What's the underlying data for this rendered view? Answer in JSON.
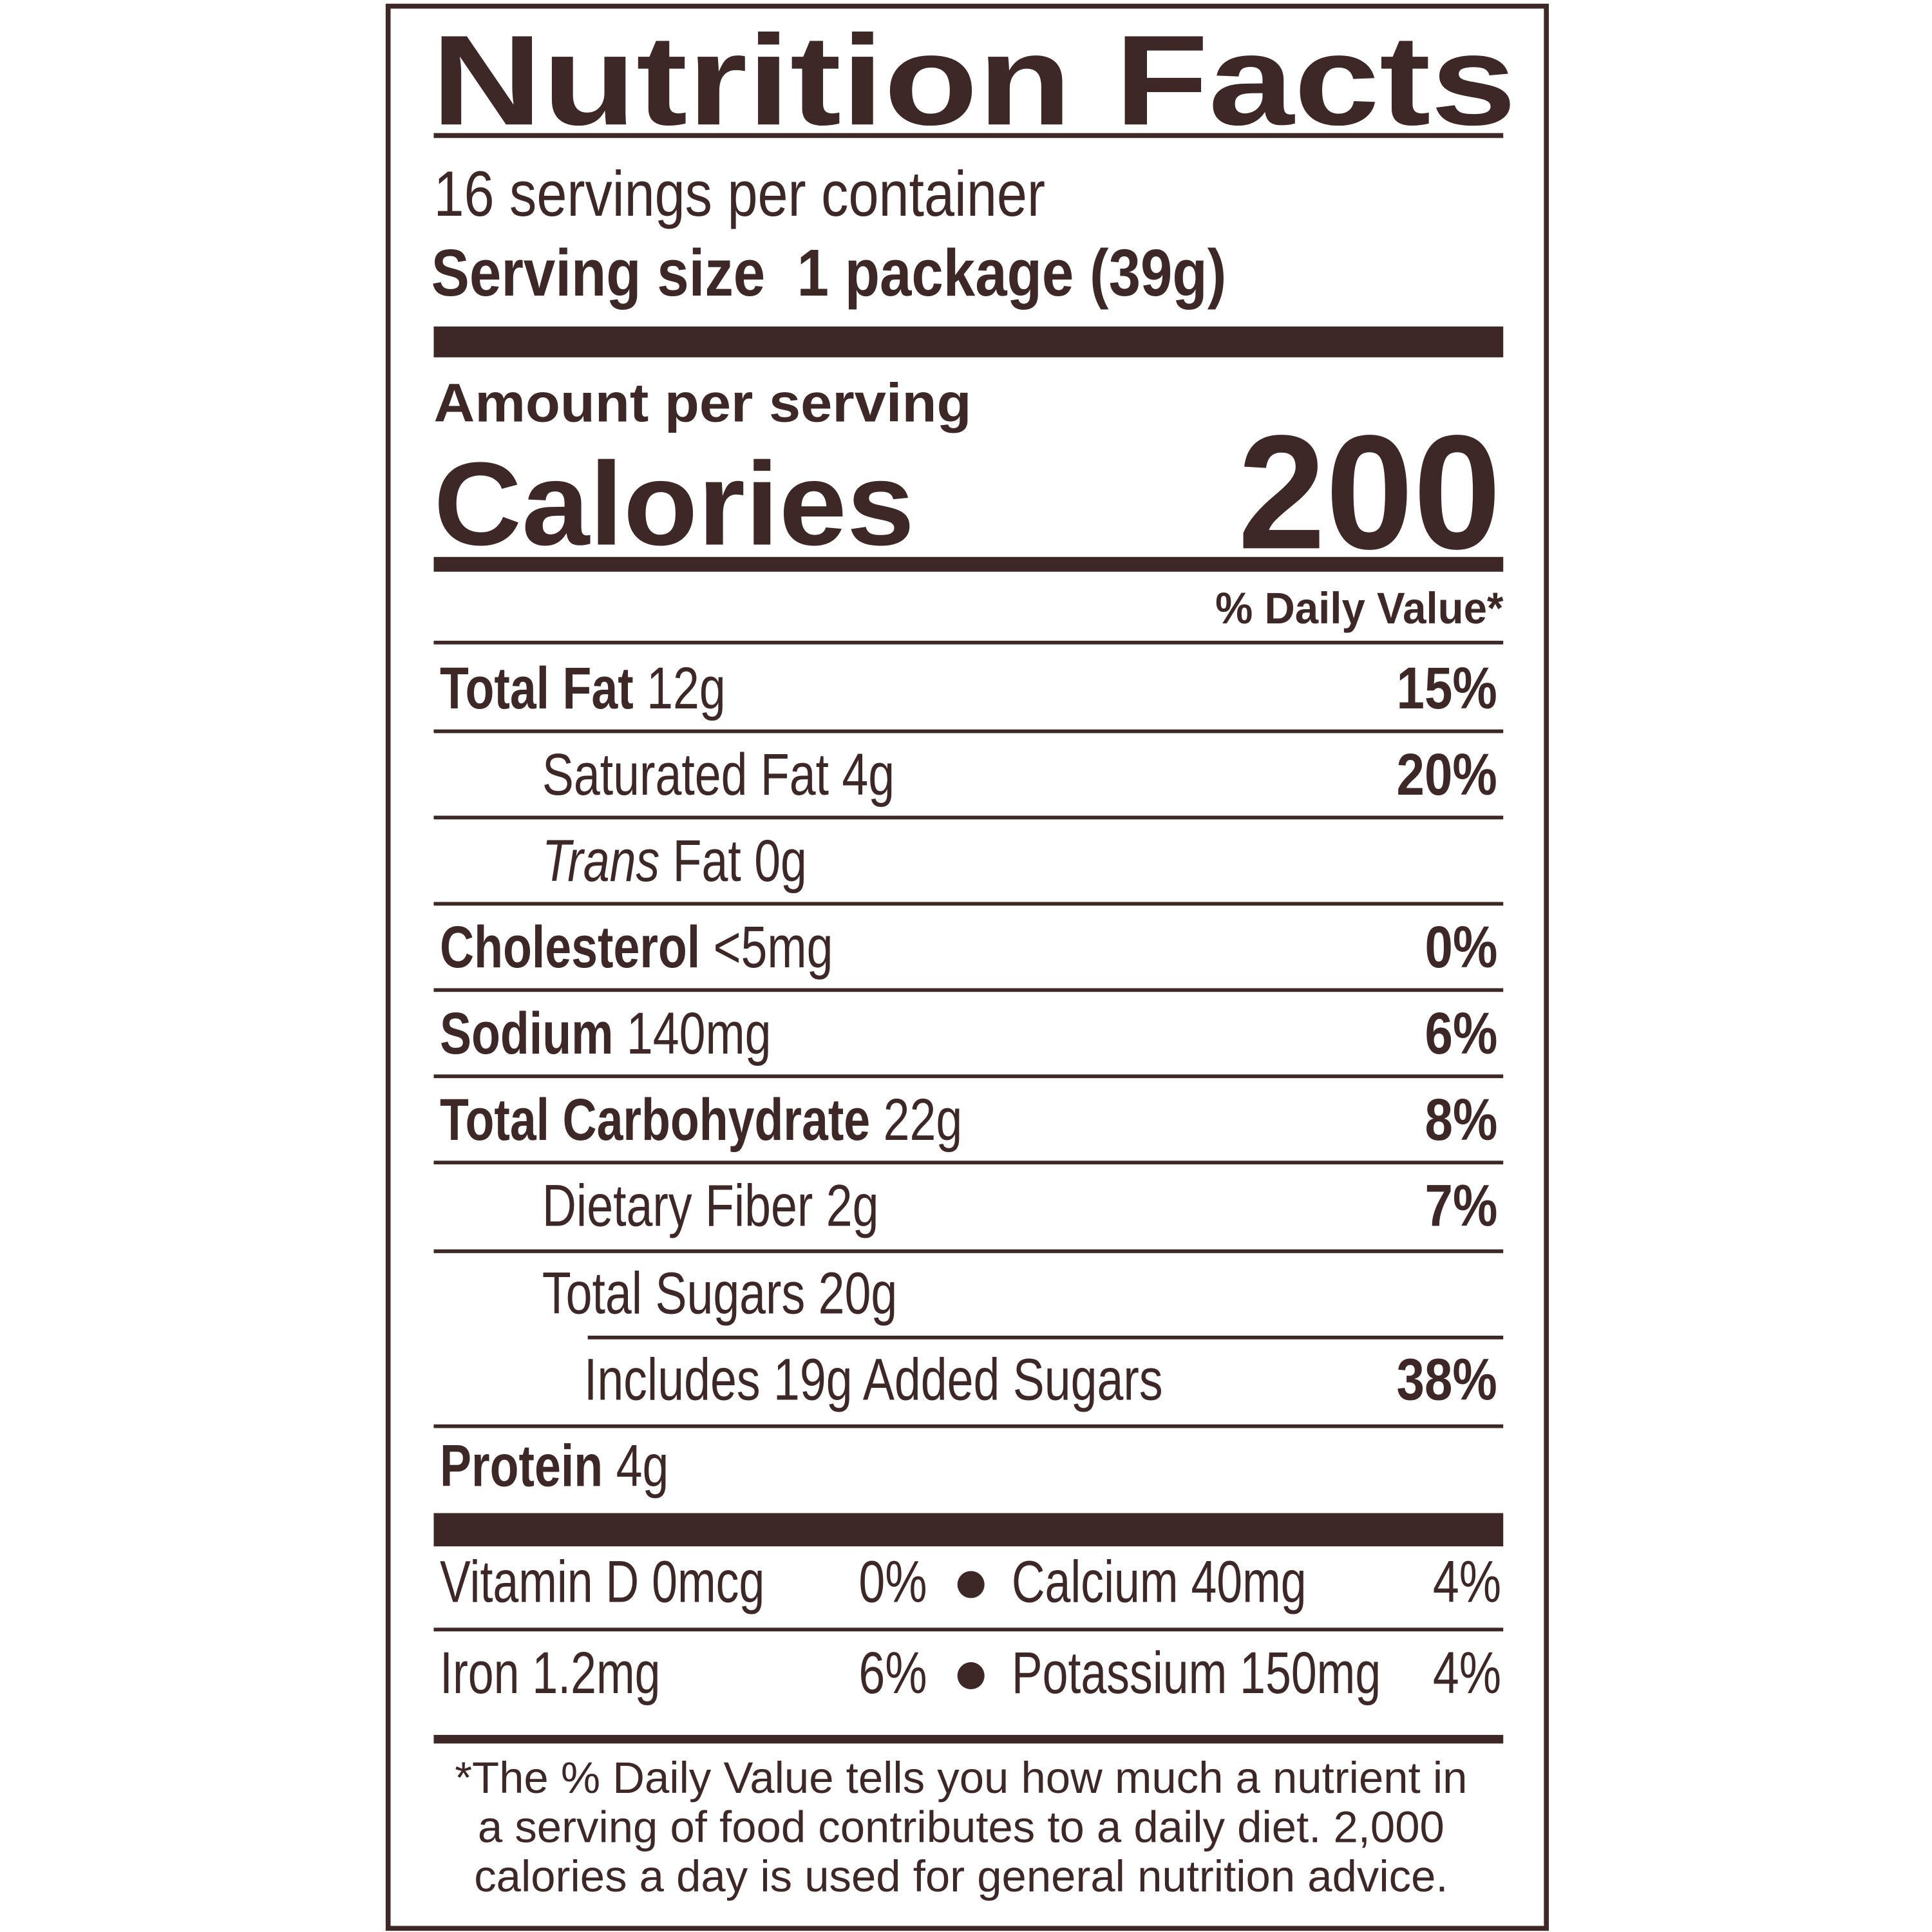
{
  "title": "Nutrition Facts",
  "servings_per_container": "16 servings per container",
  "serving_size": {
    "label": "Serving size",
    "value": "1 package (39g)"
  },
  "amount_per_serving": "Amount per serving",
  "calories": {
    "label": "Calories",
    "value": "200"
  },
  "daily_value_header": "% Daily Value*",
  "nutrients": [
    {
      "label": "Total Fat",
      "amount": "12g",
      "dv": "15%"
    },
    {
      "label": "Saturated Fat 4g",
      "dv": "20%"
    },
    {
      "label_italic": "Trans",
      "label": " Fat 0g"
    },
    {
      "label": "Cholesterol",
      "amount": "<5mg",
      "dv": "0%"
    },
    {
      "label": "Sodium",
      "amount": "140mg",
      "dv": "6%"
    },
    {
      "label": "Total Carbohydrate",
      "amount": "22g",
      "dv": "8%"
    },
    {
      "label": "Dietary Fiber 2g",
      "dv": "7%"
    },
    {
      "label": "Total Sugars 20g"
    },
    {
      "label": "Includes 19g Added Sugars",
      "dv": "38%"
    },
    {
      "label": "Protein",
      "amount": "4g"
    }
  ],
  "vitamins": [
    {
      "label": "Vitamin D 0mcg",
      "dv": "0%"
    },
    {
      "label": "Calcium 40mg",
      "dv": "4%"
    },
    {
      "label": "Iron 1.2mg",
      "dv": "6%"
    },
    {
      "label": "Potassium 150mg",
      "dv": "4%"
    }
  ],
  "footnote": [
    "*The % Daily Value tells you how much a nutrient in",
    "a serving of food contributes to a daily diet. 2,000",
    "calories a day is used for general nutrition advice."
  ],
  "colors": {
    "ink": "#3d2727",
    "background": "#ffffff"
  }
}
